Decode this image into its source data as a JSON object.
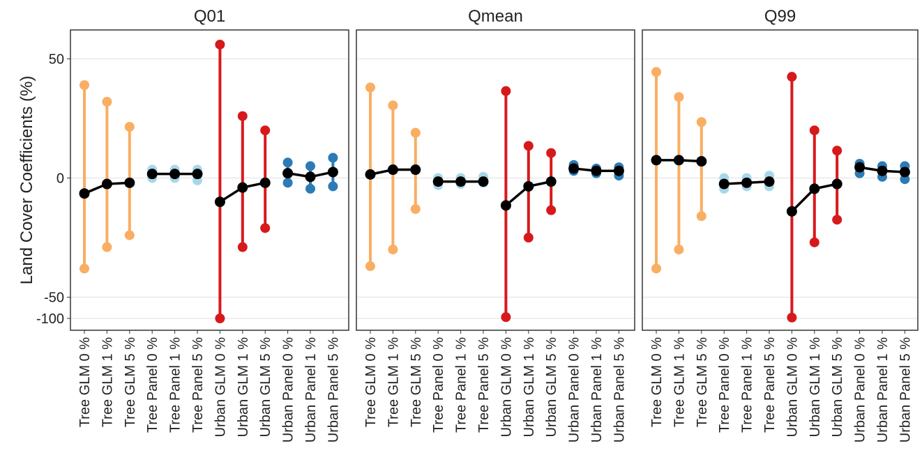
{
  "chart_data": {
    "type": "scatter",
    "ylabel": "Land Cover Coefficients (%)",
    "ytick_labels": [
      {
        "value": 50,
        "label": "50"
      },
      {
        "value": 0,
        "label": "0"
      },
      {
        "value": -50,
        "label": "-50"
      },
      {
        "value": -100,
        "label": "-100"
      }
    ],
    "y_axis_note": "broken scale: -100 tick placed just below -50",
    "categories": [
      "Tree GLM 0 %",
      "Tree GLM 1 %",
      "Tree GLM 5 %",
      "Tree Panel 0 %",
      "Tree Panel 1 %",
      "Tree Panel 5 %",
      "Urban GLM 0 %",
      "Urban GLM 1 %",
      "Urban GLM 5 %",
      "Urban Panel 0 %",
      "Urban Panel 1 %",
      "Urban Panel 5 %"
    ],
    "category_colors": [
      "#F9AE63",
      "#F9AE63",
      "#F9AE63",
      "#A6D8EA",
      "#A6D8EA",
      "#A6D8EA",
      "#D7191C",
      "#D7191C",
      "#D7191C",
      "#2C7BB6",
      "#2C7BB6",
      "#2C7BB6"
    ],
    "grid": true,
    "panels": [
      {
        "title": "Q01",
        "lower": [
          -38,
          -29,
          -24,
          0,
          0,
          -1,
          -100,
          -29,
          -21,
          -2,
          -4.5,
          -3.5
        ],
        "estimate": [
          -6.5,
          -2.5,
          -2,
          1.7,
          1.7,
          1.7,
          -10,
          -4,
          -2,
          2,
          0.5,
          2.5
        ],
        "upper": [
          39,
          32,
          21.5,
          3.5,
          3.5,
          3.5,
          56,
          26,
          20,
          6.5,
          5,
          8.5
        ]
      },
      {
        "title": "Qmean",
        "lower": [
          -37,
          -30,
          -13,
          -3,
          -2.5,
          -2,
          -97,
          -25,
          -13.5,
          3,
          2,
          1
        ],
        "estimate": [
          1.5,
          3.5,
          3.5,
          -1.5,
          -1.5,
          -1.5,
          -11.5,
          -3.5,
          -1.5,
          4,
          3,
          3
        ],
        "upper": [
          38,
          30.5,
          19,
          0,
          0,
          0.5,
          36.5,
          13.5,
          10.5,
          5.5,
          4,
          4.5
        ]
      },
      {
        "title": "Q99",
        "lower": [
          -38,
          -30,
          -16,
          -4.5,
          -3.5,
          -3.5,
          -98,
          -27,
          -17.5,
          2,
          0.5,
          -0.5
        ],
        "estimate": [
          7.5,
          7.5,
          7,
          -2.5,
          -2,
          -1.5,
          -14,
          -4.5,
          -2.5,
          4.5,
          3,
          2.5
        ],
        "upper": [
          44.5,
          34,
          23.5,
          0,
          0,
          1,
          42.5,
          20,
          11.5,
          6,
          5,
          5
        ]
      }
    ]
  }
}
